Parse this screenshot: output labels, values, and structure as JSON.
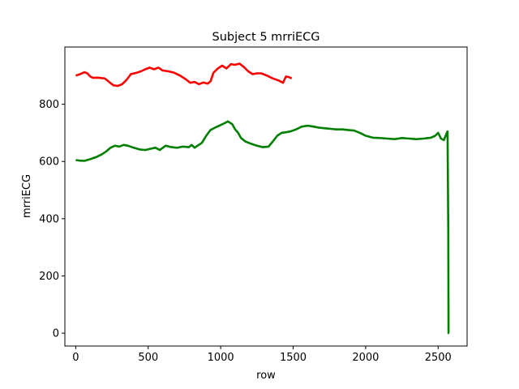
{
  "chart_data": {
    "type": "line",
    "title": "Subject 5 mrriECG",
    "xlabel": "row",
    "ylabel": "mrriECG",
    "xlim": [
      -75,
      2700
    ],
    "ylim": [
      -45,
      1000
    ],
    "xticks": [
      0,
      500,
      1000,
      1500,
      2000,
      2500
    ],
    "yticks": [
      0,
      200,
      400,
      600,
      800
    ],
    "grid": false,
    "series": [
      {
        "color": "#ff0000",
        "x": [
          0,
          30,
          60,
          80,
          100,
          120,
          150,
          200,
          230,
          260,
          290,
          320,
          350,
          380,
          420,
          450,
          480,
          510,
          540,
          570,
          600,
          640,
          680,
          720,
          760,
          790,
          820,
          850,
          880,
          910,
          930,
          950,
          980,
          1010,
          1040,
          1070,
          1100,
          1130,
          1160,
          1190,
          1220,
          1250,
          1280,
          1320,
          1360,
          1400,
          1430,
          1450,
          1470,
          1490
        ],
        "y": [
          900,
          905,
          912,
          908,
          897,
          892,
          893,
          890,
          878,
          866,
          864,
          870,
          885,
          905,
          910,
          915,
          922,
          928,
          922,
          928,
          918,
          915,
          910,
          900,
          887,
          875,
          878,
          870,
          876,
          872,
          880,
          910,
          925,
          935,
          925,
          940,
          938,
          942,
          930,
          915,
          905,
          908,
          908,
          900,
          890,
          883,
          875,
          897,
          895,
          890
        ]
      },
      {
        "color": "#007f00",
        "x": [
          0,
          30,
          60,
          100,
          140,
          180,
          210,
          240,
          270,
          300,
          330,
          360,
          400,
          440,
          480,
          520,
          550,
          580,
          620,
          660,
          700,
          740,
          780,
          800,
          820,
          840,
          870,
          900,
          930,
          960,
          990,
          1020,
          1050,
          1080,
          1100,
          1120,
          1140,
          1170,
          1210,
          1250,
          1290,
          1330,
          1360,
          1390,
          1420,
          1450,
          1480,
          1520,
          1560,
          1600,
          1640,
          1680,
          1720,
          1760,
          1800,
          1840,
          1880,
          1920,
          1960,
          2000,
          2050,
          2100,
          2150,
          2200,
          2250,
          2300,
          2350,
          2400,
          2450,
          2480,
          2500,
          2520,
          2540,
          2560,
          2565,
          2570,
          2572,
          2575
        ],
        "y": [
          605,
          603,
          602,
          608,
          615,
          625,
          635,
          648,
          655,
          652,
          658,
          655,
          648,
          642,
          640,
          645,
          648,
          640,
          655,
          650,
          648,
          652,
          650,
          658,
          648,
          655,
          665,
          690,
          710,
          718,
          725,
          732,
          740,
          730,
          712,
          700,
          682,
          670,
          662,
          655,
          650,
          652,
          670,
          690,
          700,
          702,
          705,
          712,
          722,
          725,
          722,
          718,
          716,
          714,
          712,
          712,
          710,
          708,
          700,
          690,
          683,
          682,
          680,
          678,
          682,
          680,
          678,
          680,
          683,
          690,
          700,
          680,
          675,
          700,
          705,
          350,
          0,
          0
        ]
      }
    ]
  }
}
